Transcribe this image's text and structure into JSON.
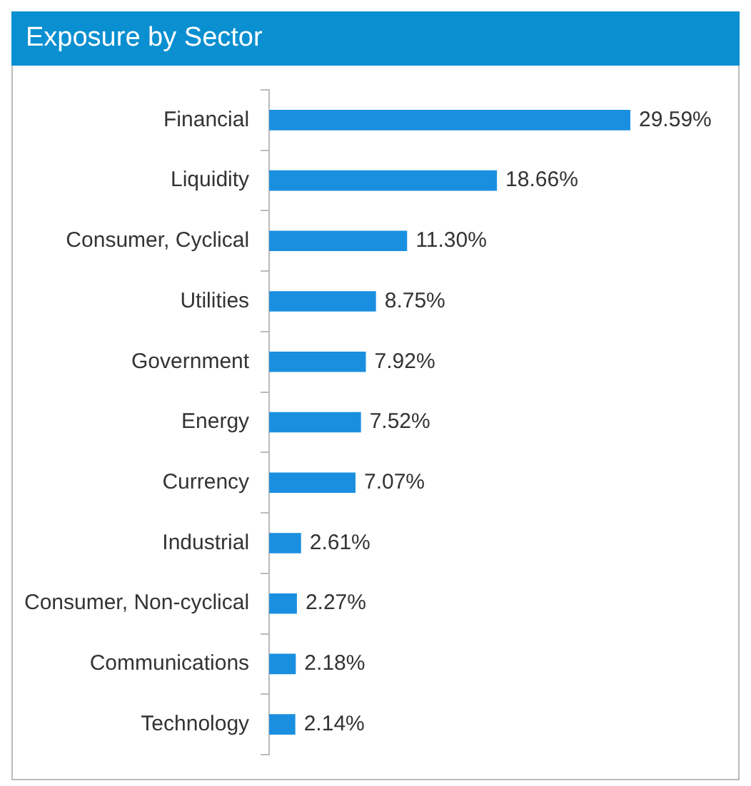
{
  "chart_data": {
    "type": "bar",
    "title": "Exposure by Sector",
    "orientation": "horizontal",
    "categories": [
      "Financial",
      "Liquidity",
      "Consumer, Cyclical",
      "Utilities",
      "Government",
      "Energy",
      "Currency",
      "Industrial",
      "Consumer, Non-cyclical",
      "Communications",
      "Technology"
    ],
    "values": [
      29.59,
      18.66,
      11.3,
      8.75,
      7.92,
      7.52,
      7.07,
      2.61,
      2.27,
      2.18,
      2.14
    ],
    "value_labels": [
      "29.59%",
      "18.66%",
      "11.30%",
      "8.75%",
      "7.92%",
      "7.52%",
      "7.07%",
      "2.61%",
      "2.27%",
      "2.18%",
      "2.14%"
    ],
    "color": "#1a8fe0",
    "legend": false
  }
}
